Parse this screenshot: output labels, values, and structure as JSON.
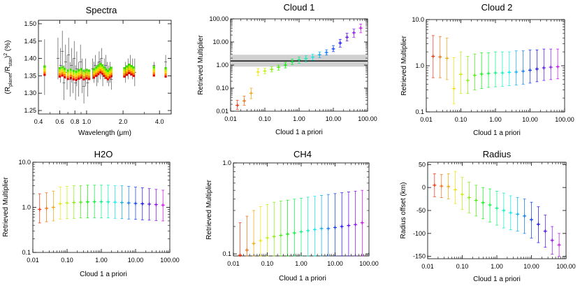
{
  "chart_data": [
    {
      "id": "spectra",
      "type": "scatter",
      "title": "Spectra",
      "xlabel": "Wavelength (μm)",
      "ylabel": "(R_planet/R_star)^2 (%)",
      "xscale": "log",
      "yscale": "linear",
      "xlim": [
        0.4,
        5.0
      ],
      "ylim": [
        1.24,
        1.51
      ],
      "xticks": [
        0.4,
        0.6,
        0.8,
        1.0,
        2.0,
        4.0
      ],
      "xtick_labels": [
        "0.4",
        "0.6",
        "0.8",
        "1.0",
        "2.0",
        "4.0"
      ],
      "yticks": [
        1.25,
        1.3,
        1.35,
        1.4,
        1.45,
        1.5
      ],
      "ytick_labels": [
        "1.25",
        "1.30",
        "1.35",
        "1.40",
        "1.45",
        "1.50"
      ],
      "observed": {
        "x": [
          0.45,
          0.58,
          0.61,
          0.63,
          0.65,
          0.67,
          0.69,
          0.71,
          0.73,
          0.75,
          0.77,
          0.79,
          0.81,
          0.83,
          0.86,
          0.89,
          0.92,
          0.95,
          0.98,
          1.02,
          1.12,
          1.15,
          1.18,
          1.21,
          1.24,
          1.27,
          1.3,
          1.33,
          1.36,
          1.4,
          1.44,
          1.48,
          1.52,
          1.56,
          1.6,
          2.1,
          2.2,
          2.3,
          2.4,
          2.5,
          3.6,
          4.5
        ],
        "y": [
          1.375,
          1.4,
          1.38,
          1.42,
          1.33,
          1.39,
          1.36,
          1.41,
          1.34,
          1.38,
          1.35,
          1.4,
          1.33,
          1.37,
          1.34,
          1.39,
          1.35,
          1.32,
          1.36,
          1.33,
          1.37,
          1.36,
          1.38,
          1.35,
          1.36,
          1.39,
          1.37,
          1.4,
          1.35,
          1.37,
          1.38,
          1.36,
          1.35,
          1.36,
          1.34,
          1.36,
          1.37,
          1.38,
          1.37,
          1.36,
          1.38,
          1.39
        ],
        "err": [
          0.08,
          0.06,
          0.05,
          0.06,
          0.05,
          0.05,
          0.05,
          0.05,
          0.05,
          0.05,
          0.05,
          0.05,
          0.05,
          0.05,
          0.05,
          0.05,
          0.05,
          0.05,
          0.04,
          0.04,
          0.03,
          0.03,
          0.03,
          0.03,
          0.03,
          0.03,
          0.03,
          0.03,
          0.03,
          0.03,
          0.03,
          0.03,
          0.03,
          0.03,
          0.03,
          0.03,
          0.03,
          0.03,
          0.03,
          0.04,
          0.01,
          0.02
        ]
      },
      "model": {
        "x": [
          0.45,
          0.6,
          0.63,
          0.66,
          0.7,
          0.74,
          0.78,
          0.82,
          0.86,
          0.9,
          0.95,
          1.0,
          1.05,
          1.15,
          1.2,
          1.25,
          1.3,
          1.35,
          1.4,
          1.45,
          1.5,
          1.55,
          1.6,
          2.05,
          2.15,
          2.25,
          2.35,
          2.45,
          3.6,
          4.5
        ],
        "y": [
          1.365,
          1.36,
          1.363,
          1.358,
          1.353,
          1.356,
          1.352,
          1.35,
          1.354,
          1.357,
          1.352,
          1.355,
          1.353,
          1.357,
          1.362,
          1.367,
          1.372,
          1.368,
          1.362,
          1.356,
          1.352,
          1.357,
          1.361,
          1.36,
          1.365,
          1.37,
          1.366,
          1.362,
          1.363,
          1.36
        ],
        "spread": 0.012,
        "colors": [
          "#e60000",
          "#ff8000",
          "#ffd000",
          "#b0f000",
          "#40e000"
        ]
      }
    },
    {
      "id": "cloud1",
      "type": "scatter",
      "title": "Cloud 1",
      "xlabel": "Cloud 1 a priori",
      "ylabel": "Retrieved Multiplier",
      "xscale": "log",
      "yscale": "log",
      "xlim": [
        0.01,
        100.0
      ],
      "ylim": [
        0.01,
        100.0
      ],
      "xtick_labels": [
        "0.01",
        "0.10",
        "1.00",
        "10.00",
        "100.00"
      ],
      "ytick_labels": [
        "0.01",
        "0.10",
        "1.00",
        "10.00",
        "100.00"
      ],
      "hline": 1.5,
      "band": [
        0.85,
        2.8
      ],
      "x": [
        0.0158,
        0.0251,
        0.0398,
        0.0631,
        0.1,
        0.1585,
        0.2512,
        0.3981,
        0.631,
        1.0,
        1.585,
        2.512,
        3.981,
        6.31,
        10.0,
        15.85,
        25.12,
        39.81,
        63.1
      ],
      "y": [
        0.018,
        0.028,
        0.06,
        0.5,
        0.55,
        0.65,
        0.8,
        1.0,
        1.4,
        1.7,
        1.9,
        2.2,
        2.8,
        3.5,
        5.0,
        9.0,
        16.0,
        25.0,
        40.0
      ],
      "lo": [
        0.012,
        0.018,
        0.035,
        0.35,
        0.42,
        0.5,
        0.6,
        0.75,
        1.05,
        1.2,
        1.4,
        1.6,
        2.1,
        2.7,
        3.8,
        6.0,
        11.0,
        16.0,
        25.0
      ],
      "hi": [
        0.03,
        0.045,
        0.1,
        0.7,
        0.72,
        0.85,
        1.0,
        1.3,
        1.8,
        2.2,
        2.5,
        3.0,
        3.7,
        4.6,
        7.0,
        13.0,
        24.0,
        36.0,
        60.0
      ]
    },
    {
      "id": "cloud2",
      "type": "scatter",
      "title": "Cloud 2",
      "xlabel": "Cloud 1 a priori",
      "ylabel": "Retrieved Multiplier",
      "xscale": "log",
      "yscale": "log",
      "xlim": [
        0.01,
        100.0
      ],
      "ylim": [
        0.1,
        10.0
      ],
      "xtick_labels": [
        "0.01",
        "0.10",
        "1.00",
        "10.00",
        "100.00"
      ],
      "ytick_labels": [
        "0.1",
        "1.0",
        "10.0"
      ],
      "x": [
        0.0158,
        0.0251,
        0.0398,
        0.0631,
        0.1,
        0.1585,
        0.2512,
        0.3981,
        0.631,
        1.0,
        1.585,
        2.512,
        3.981,
        6.31,
        10.0,
        15.85,
        25.12,
        39.81,
        63.1
      ],
      "y": [
        1.6,
        1.55,
        1.45,
        0.32,
        0.65,
        0.48,
        0.62,
        0.66,
        0.68,
        0.7,
        0.7,
        0.72,
        0.73,
        0.76,
        0.8,
        0.85,
        0.9,
        0.93,
        0.95
      ],
      "lo": [
        0.55,
        0.55,
        0.5,
        0.15,
        0.25,
        0.25,
        0.3,
        0.32,
        0.34,
        0.35,
        0.36,
        0.37,
        0.38,
        0.4,
        0.42,
        0.45,
        0.48,
        0.5,
        0.52
      ],
      "hi": [
        4.5,
        4.3,
        4.0,
        1.5,
        2.0,
        1.6,
        1.8,
        1.9,
        1.9,
        2.0,
        2.0,
        2.0,
        2.1,
        2.1,
        2.2,
        2.2,
        2.3,
        2.3,
        2.3
      ]
    },
    {
      "id": "h2o",
      "type": "scatter",
      "title": "H2O",
      "xlabel": "Cloud 1 a priori",
      "ylabel": "Retrieved Multiplier",
      "xscale": "log",
      "yscale": "log",
      "xlim": [
        0.01,
        100.0
      ],
      "ylim": [
        0.1,
        10.0
      ],
      "xtick_labels": [
        "0.01",
        "0.10",
        "1.00",
        "10.00",
        "100.00"
      ],
      "ytick_labels": [
        "0.1",
        "1.0",
        "10.0"
      ],
      "x": [
        0.0158,
        0.0251,
        0.0398,
        0.0631,
        0.1,
        0.1585,
        0.2512,
        0.3981,
        0.631,
        1.0,
        1.585,
        2.512,
        3.981,
        6.31,
        10.0,
        15.85,
        25.12,
        39.81,
        63.1
      ],
      "y": [
        0.9,
        0.95,
        1.0,
        1.2,
        1.25,
        1.28,
        1.3,
        1.32,
        1.33,
        1.33,
        1.32,
        1.3,
        1.28,
        1.25,
        1.22,
        1.2,
        1.18,
        1.15,
        1.12
      ],
      "lo": [
        0.45,
        0.48,
        0.5,
        0.55,
        0.56,
        0.57,
        0.58,
        0.58,
        0.58,
        0.58,
        0.58,
        0.57,
        0.56,
        0.55,
        0.54,
        0.53,
        0.52,
        0.51,
        0.5
      ],
      "hi": [
        2.0,
        2.1,
        2.3,
        2.8,
        2.9,
        3.0,
        3.0,
        3.1,
        3.1,
        3.1,
        3.1,
        3.0,
        3.0,
        2.9,
        2.8,
        2.7,
        2.6,
        2.5,
        2.4
      ]
    },
    {
      "id": "ch4",
      "type": "scatter",
      "title": "CH4",
      "xlabel": "Cloud 1 a priori",
      "ylabel": "Retrieved Multiplier",
      "xscale": "log",
      "yscale": "log",
      "xlim": [
        0.01,
        100.0
      ],
      "ylim": [
        0.095,
        1.0
      ],
      "xtick_labels": [
        "0.01",
        "0.10",
        "1.00",
        "10.00",
        "100.00"
      ],
      "ytick_labels": [
        "0.1",
        "1.0"
      ],
      "x": [
        0.0158,
        0.0251,
        0.0398,
        0.0631,
        0.1,
        0.1585,
        0.2512,
        0.3981,
        0.631,
        1.0,
        1.585,
        2.512,
        3.981,
        6.31,
        10.0,
        15.85,
        25.12,
        39.81,
        63.1
      ],
      "y": [
        0.097,
        0.11,
        0.13,
        0.14,
        0.15,
        0.155,
        0.16,
        0.165,
        0.17,
        0.175,
        0.18,
        0.185,
        0.19,
        0.19,
        0.195,
        0.2,
        0.205,
        0.21,
        0.22
      ],
      "lo": [
        0.095,
        0.095,
        0.095,
        0.095,
        0.095,
        0.095,
        0.095,
        0.095,
        0.095,
        0.095,
        0.095,
        0.095,
        0.095,
        0.095,
        0.095,
        0.095,
        0.095,
        0.095,
        0.095
      ],
      "hi": [
        0.22,
        0.26,
        0.3,
        0.33,
        0.35,
        0.37,
        0.38,
        0.39,
        0.4,
        0.41,
        0.42,
        0.43,
        0.44,
        0.45,
        0.46,
        0.47,
        0.48,
        0.49,
        0.5
      ]
    },
    {
      "id": "radius",
      "type": "scatter",
      "title": "Radius",
      "xlabel": "Cloud 1 a priori",
      "ylabel": "Radius offset (km)",
      "xscale": "log",
      "yscale": "linear",
      "xlim": [
        0.01,
        100.0
      ],
      "ylim": [
        -155,
        55
      ],
      "xtick_labels": [
        "0.01",
        "0.10",
        "1.00",
        "10.00",
        "100.00"
      ],
      "yticks": [
        50,
        0,
        -50,
        -100,
        -150
      ],
      "ytick_labels": [
        "50",
        "0",
        "-50",
        "-100",
        "-150"
      ],
      "x": [
        0.0158,
        0.0251,
        0.0398,
        0.0631,
        0.1,
        0.1585,
        0.2512,
        0.3981,
        0.631,
        1.0,
        1.585,
        2.512,
        3.981,
        6.31,
        10.0,
        15.85,
        25.12,
        39.81,
        63.1
      ],
      "y": [
        5,
        3,
        2,
        -5,
        -15,
        -22,
        -28,
        -33,
        -38,
        -45,
        -50,
        -55,
        -58,
        -62,
        -70,
        -80,
        -95,
        -115,
        -125
      ],
      "lo": [
        -20,
        -22,
        -25,
        -35,
        -48,
        -55,
        -62,
        -68,
        -75,
        -82,
        -88,
        -92,
        -95,
        -100,
        -110,
        -120,
        -130,
        -145,
        -150
      ],
      "hi": [
        30,
        28,
        30,
        35,
        22,
        12,
        5,
        0,
        -3,
        -8,
        -12,
        -18,
        -22,
        -25,
        -32,
        -42,
        -60,
        -85,
        -100
      ]
    }
  ]
}
